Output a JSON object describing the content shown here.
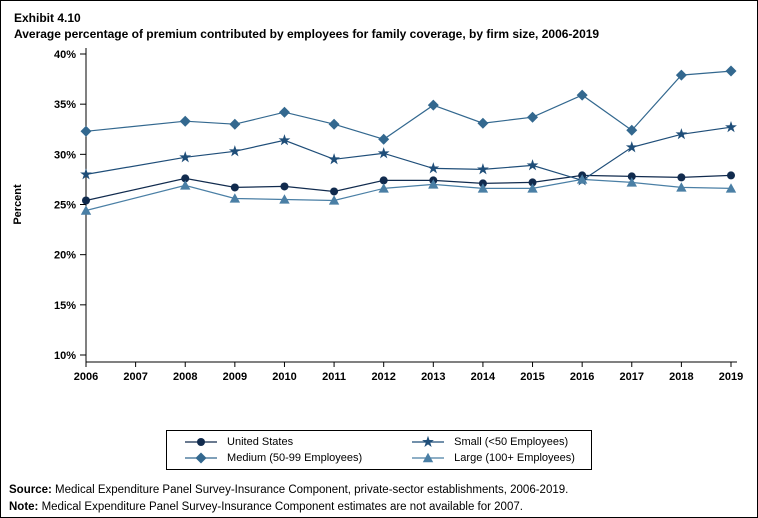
{
  "header": {
    "exhibit": "Exhibit 4.10",
    "title": "Average percentage of premium contributed by employees for family coverage, by firm size, 2006-2019"
  },
  "chart_data": {
    "type": "line",
    "title": "Average percentage of premium contributed by employees for family coverage, by firm size, 2006-2019",
    "xlabel": "",
    "ylabel": "Percent",
    "ylim": [
      10,
      40
    ],
    "yticks": [
      "10%",
      "15%",
      "20%",
      "25%",
      "30%",
      "35%",
      "40%"
    ],
    "ytick_values": [
      10,
      15,
      20,
      25,
      30,
      35,
      40
    ],
    "grid": false,
    "legend_position": "bottom",
    "x": [
      2006,
      2007,
      2008,
      2009,
      2010,
      2011,
      2012,
      2013,
      2014,
      2015,
      2016,
      2017,
      2018,
      2019
    ],
    "note_gap": "2007 estimates not available",
    "series": [
      {
        "name": "United States",
        "marker": "circle",
        "color": "#112b4e",
        "values": [
          25.4,
          null,
          27.6,
          26.7,
          26.8,
          26.3,
          27.4,
          27.4,
          27.1,
          27.2,
          27.9,
          27.8,
          27.7,
          27.9
        ]
      },
      {
        "name": "Small (<50 Employees)",
        "marker": "star",
        "color": "#1f4e79",
        "values": [
          28.0,
          null,
          29.7,
          30.3,
          31.4,
          29.5,
          30.1,
          28.6,
          28.5,
          28.9,
          27.4,
          30.7,
          32.0,
          32.7
        ]
      },
      {
        "name": "Medium (50-99 Employees)",
        "marker": "diamond",
        "color": "#33688f",
        "values": [
          32.3,
          null,
          33.3,
          33.0,
          34.2,
          33.0,
          31.5,
          34.9,
          33.1,
          33.7,
          35.9,
          32.4,
          37.9,
          38.3
        ]
      },
      {
        "name": "Large (100+ Employees)",
        "marker": "triangle",
        "color": "#4a7fa5",
        "values": [
          24.4,
          null,
          26.9,
          25.6,
          25.5,
          25.4,
          26.6,
          27.0,
          26.6,
          26.6,
          27.5,
          27.2,
          26.7,
          26.6
        ]
      }
    ]
  },
  "legend": {
    "order": [
      0,
      1,
      2,
      3
    ]
  },
  "footer": {
    "source_label": "Source:",
    "source_text": " Medical Expenditure Panel Survey-Insurance Component, private-sector establishments, 2006-2019.",
    "note_label": "Note:",
    "note_text": " Medical Expenditure Panel Survey-Insurance Component estimates are not available for 2007."
  }
}
